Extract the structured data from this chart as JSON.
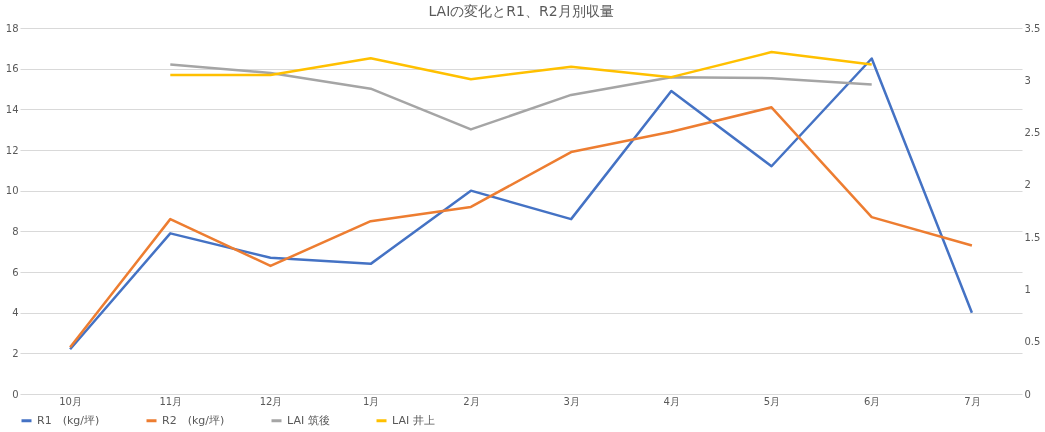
{
  "chart_data": {
    "type": "line",
    "title": "LAIの変化とR1、R2月別収量",
    "categories": [
      "10月",
      "11月",
      "12月",
      "1月",
      "2月",
      "3月",
      "4月",
      "5月",
      "6月",
      "7月"
    ],
    "series": [
      {
        "name": "R1　(kg/坪)",
        "color": "#4472c4",
        "values": [
          2.2,
          7.9,
          6.7,
          6.4,
          10.0,
          8.6,
          14.9,
          11.2,
          16.5,
          4.0
        ]
      },
      {
        "name": "R2　(kg/坪)",
        "color": "#ed7d31",
        "values": [
          2.3,
          8.6,
          6.3,
          8.5,
          9.2,
          11.9,
          12.9,
          14.1,
          8.7,
          7.3
        ]
      },
      {
        "name": "LAI 筑後",
        "color": "#a5a5a5",
        "axis": "y2",
        "values": [
          null,
          3.15,
          3.07,
          2.92,
          2.53,
          2.86,
          3.03,
          3.02,
          2.96,
          null
        ]
      },
      {
        "name": "LAI 井上",
        "color": "#ffc000",
        "axis": "y2",
        "values": [
          null,
          3.05,
          3.05,
          3.21,
          3.01,
          3.13,
          3.03,
          3.27,
          3.15,
          null
        ]
      }
    ],
    "ylim": [
      0,
      18
    ],
    "yticks": [
      0,
      2,
      4,
      6,
      8,
      10,
      12,
      14,
      16,
      18
    ],
    "y2lim": [
      0,
      3.5
    ],
    "y2ticks": [
      0,
      0.5,
      1,
      1.5,
      2,
      2.5,
      3,
      3.5
    ],
    "grid": "y",
    "legend": "bottom",
    "marker": "none",
    "line_style": "solid"
  }
}
